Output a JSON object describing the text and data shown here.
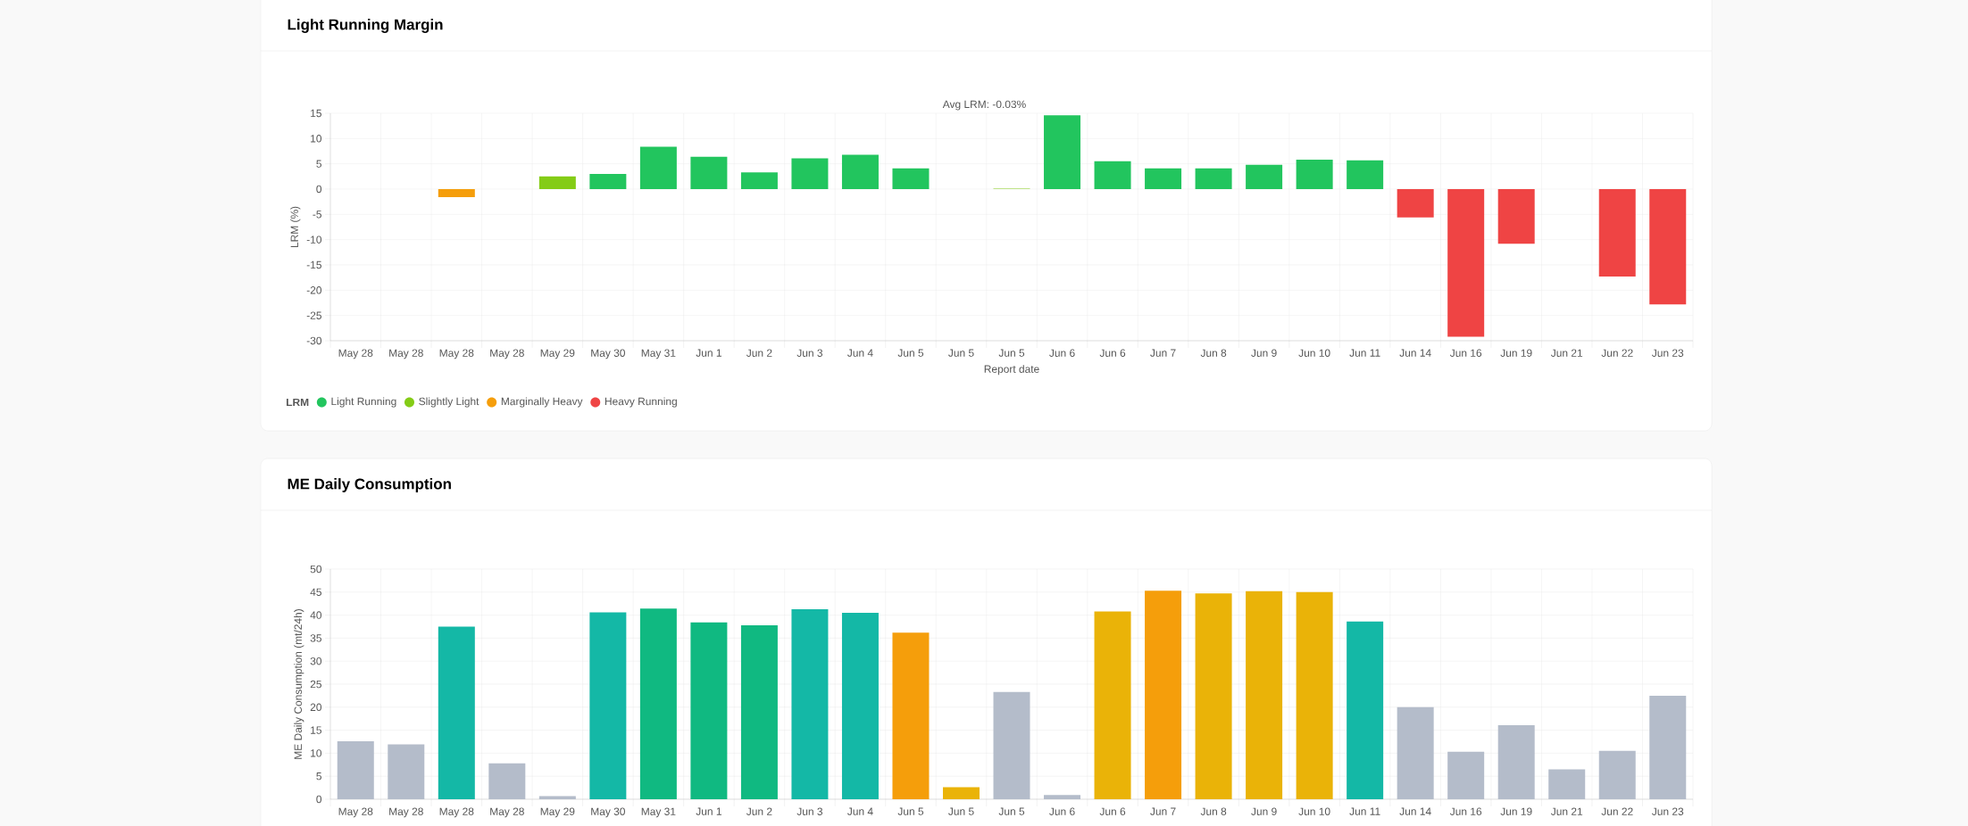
{
  "chart_data": [
    {
      "type": "bar",
      "title": "Light Running Margin",
      "xlabel": "Report date",
      "ylabel": "LRM (%)",
      "legend_title": "LRM",
      "annotations": [
        "Avg LRM: -0.03%"
      ],
      "categories": [
        "May 28",
        "May 28",
        "May 28",
        "May 28",
        "May 29",
        "May 30",
        "May 31",
        "Jun 1",
        "Jun 2",
        "Jun 3",
        "Jun 4",
        "Jun 5",
        "Jun 5",
        "Jun 5",
        "Jun 6",
        "Jun 6",
        "Jun 7",
        "Jun 8",
        "Jun 9",
        "Jun 10",
        "Jun 11",
        "Jun 14",
        "Jun 16",
        "Jun 19",
        "Jun 21",
        "Jun 22",
        "Jun 23"
      ],
      "series": [
        {
          "name": "Light Running",
          "color": "#22c55e",
          "values": [
            null,
            null,
            null,
            null,
            null,
            3.0,
            8.4,
            6.4,
            3.3,
            6.1,
            6.8,
            4.1,
            null,
            null,
            14.6,
            5.5,
            4.1,
            4.1,
            4.8,
            5.8,
            5.7,
            null,
            null,
            null,
            null,
            null,
            null
          ]
        },
        {
          "name": "Slightly Light",
          "color": "#84cc16",
          "values": [
            null,
            null,
            null,
            null,
            2.5,
            null,
            null,
            null,
            null,
            null,
            null,
            null,
            null,
            0.1,
            null,
            null,
            null,
            null,
            null,
            null,
            null,
            null,
            null,
            null,
            null,
            null,
            null
          ]
        },
        {
          "name": "Marginally Heavy",
          "color": "#f59e0b",
          "values": [
            null,
            null,
            -1.6,
            null,
            null,
            null,
            null,
            null,
            null,
            null,
            null,
            null,
            null,
            null,
            null,
            null,
            null,
            null,
            null,
            null,
            null,
            null,
            null,
            null,
            null,
            null,
            null
          ]
        },
        {
          "name": "Heavy Running",
          "color": "#ef4444",
          "values": [
            null,
            null,
            null,
            null,
            null,
            null,
            null,
            null,
            null,
            null,
            null,
            null,
            null,
            null,
            null,
            null,
            null,
            null,
            null,
            null,
            null,
            -5.6,
            -29.2,
            -10.8,
            null,
            -17.3,
            -22.8
          ]
        }
      ],
      "ylim": [
        -30,
        15
      ],
      "yticks": [
        -30,
        -25,
        -20,
        -15,
        -10,
        -5,
        0,
        5,
        10,
        15
      ],
      "grid": true,
      "legend": "bottom"
    },
    {
      "type": "bar",
      "title": "ME Daily Consumption",
      "ylabel": "ME Daily Consumption (mt/24h)",
      "categories": [
        "May 28",
        "May 28",
        "May 28",
        "May 28",
        "May 29",
        "May 30",
        "May 31",
        "Jun 1",
        "Jun 2",
        "Jun 3",
        "Jun 4",
        "Jun 5",
        "Jun 5",
        "Jun 5",
        "Jun 6",
        "Jun 6",
        "Jun 7",
        "Jun 8",
        "Jun 9",
        "Jun 10",
        "Jun 11",
        "Jun 14",
        "Jun 16",
        "Jun 19",
        "Jun 21",
        "Jun 22",
        "Jun 23"
      ],
      "values": [
        12.6,
        11.9,
        37.5,
        7.8,
        0.7,
        40.6,
        41.4,
        38.4,
        37.8,
        41.3,
        40.5,
        36.2,
        2.6,
        23.3,
        0.9,
        40.8,
        45.3,
        44.7,
        45.2,
        45.0,
        38.6,
        20.0,
        10.3,
        16.1,
        6.5,
        10.5,
        22.5
      ],
      "colors": [
        "#b4bcca",
        "#b4bcca",
        "#14b8a6",
        "#b4bcca",
        "#b4bcca",
        "#14b8a6",
        "#10b981",
        "#10b981",
        "#10b981",
        "#14b8a6",
        "#14b8a6",
        "#f59e0b",
        "#eab308",
        "#b4bcca",
        "#b4bcca",
        "#eab308",
        "#f59e0b",
        "#eab308",
        "#eab308",
        "#eab308",
        "#14b8a6",
        "#b4bcca",
        "#b4bcca",
        "#b4bcca",
        "#b4bcca",
        "#b4bcca",
        "#b4bcca"
      ],
      "ylim": [
        0,
        50
      ],
      "yticks": [
        0,
        5,
        10,
        15,
        20,
        25,
        30,
        35,
        40,
        45,
        50
      ],
      "grid": true
    }
  ]
}
